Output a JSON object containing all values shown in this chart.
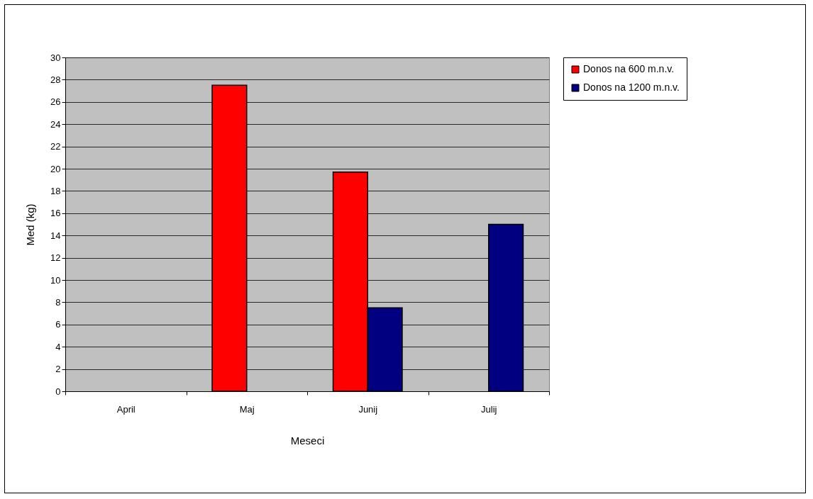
{
  "chart_data": {
    "type": "bar",
    "xlabel": "Meseci",
    "ylabel": "Med (kg)",
    "categories": [
      "April",
      "Maj",
      "Junij",
      "Julij"
    ],
    "series": [
      {
        "name": "Donos na 600 m.n.v.",
        "color": "#ff0000",
        "values": [
          null,
          27.5,
          19.7,
          null
        ]
      },
      {
        "name": "Donos na 1200 m.n.v.",
        "color": "#000080",
        "values": [
          null,
          null,
          7.5,
          15
        ]
      }
    ],
    "ylim": [
      0,
      30
    ],
    "yticks": [
      0,
      2,
      4,
      6,
      8,
      10,
      12,
      14,
      16,
      18,
      20,
      22,
      24,
      26,
      28,
      30
    ],
    "grid": "y",
    "legend": "right"
  }
}
